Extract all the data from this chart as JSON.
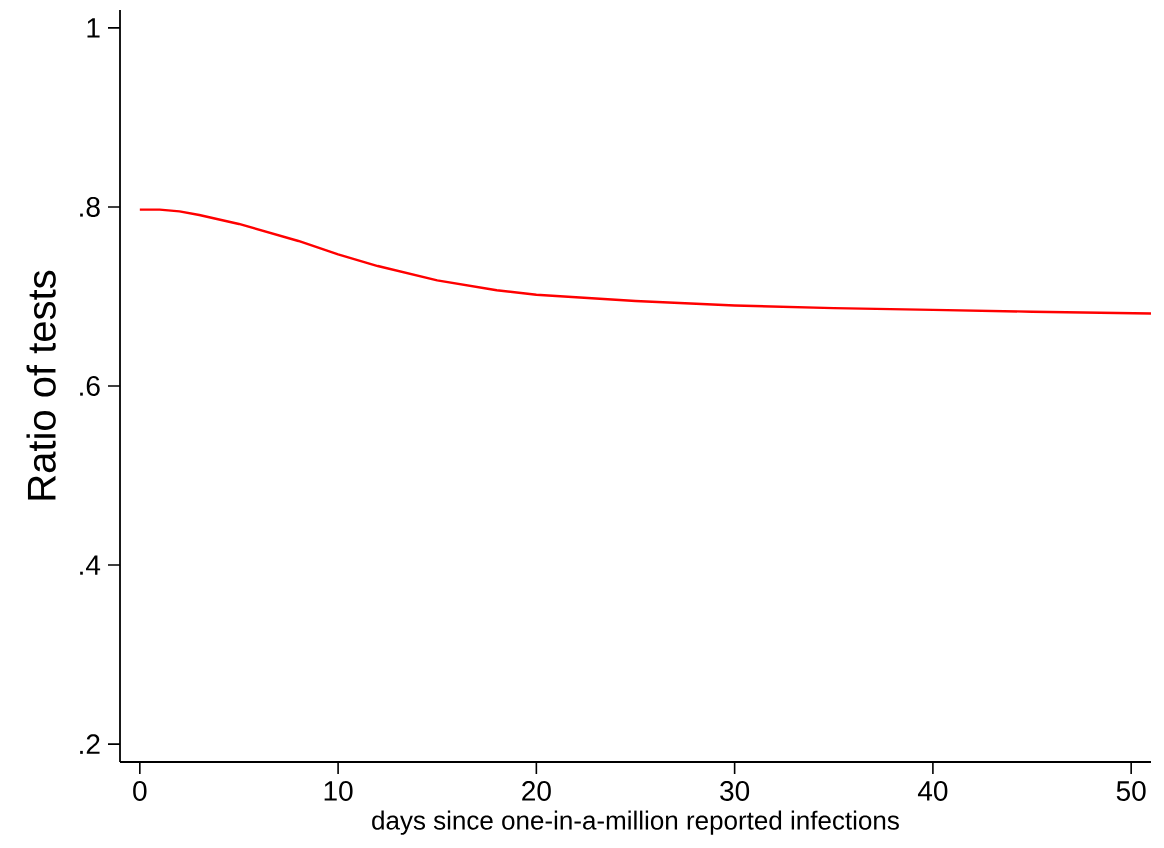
{
  "chart_data": {
    "type": "line",
    "xlabel": "days since one-in-a-million reported infections",
    "ylabel": "Ratio of tests",
    "x": [
      0,
      1,
      2,
      3,
      5,
      8,
      10,
      12,
      15,
      18,
      20,
      25,
      30,
      35,
      40,
      45,
      51
    ],
    "series": [
      {
        "color": "#ff0000",
        "values": [
          0.797,
          0.797,
          0.795,
          0.791,
          0.781,
          0.762,
          0.747,
          0.734,
          0.718,
          0.707,
          0.702,
          0.695,
          0.69,
          0.687,
          0.685,
          0.683,
          0.681
        ]
      }
    ],
    "xlim": [
      -1,
      51
    ],
    "ylim": [
      0.18,
      1.02
    ],
    "xticks": [
      0,
      10,
      20,
      30,
      40,
      50
    ],
    "yticks": [
      {
        "value": 0.2,
        "label": ".2"
      },
      {
        "value": 0.4,
        "label": ".4"
      },
      {
        "value": 0.6,
        "label": ".6"
      },
      {
        "value": 0.8,
        "label": ".8"
      },
      1
    ],
    "grid": false,
    "marker": "none",
    "line_style": "solid"
  }
}
